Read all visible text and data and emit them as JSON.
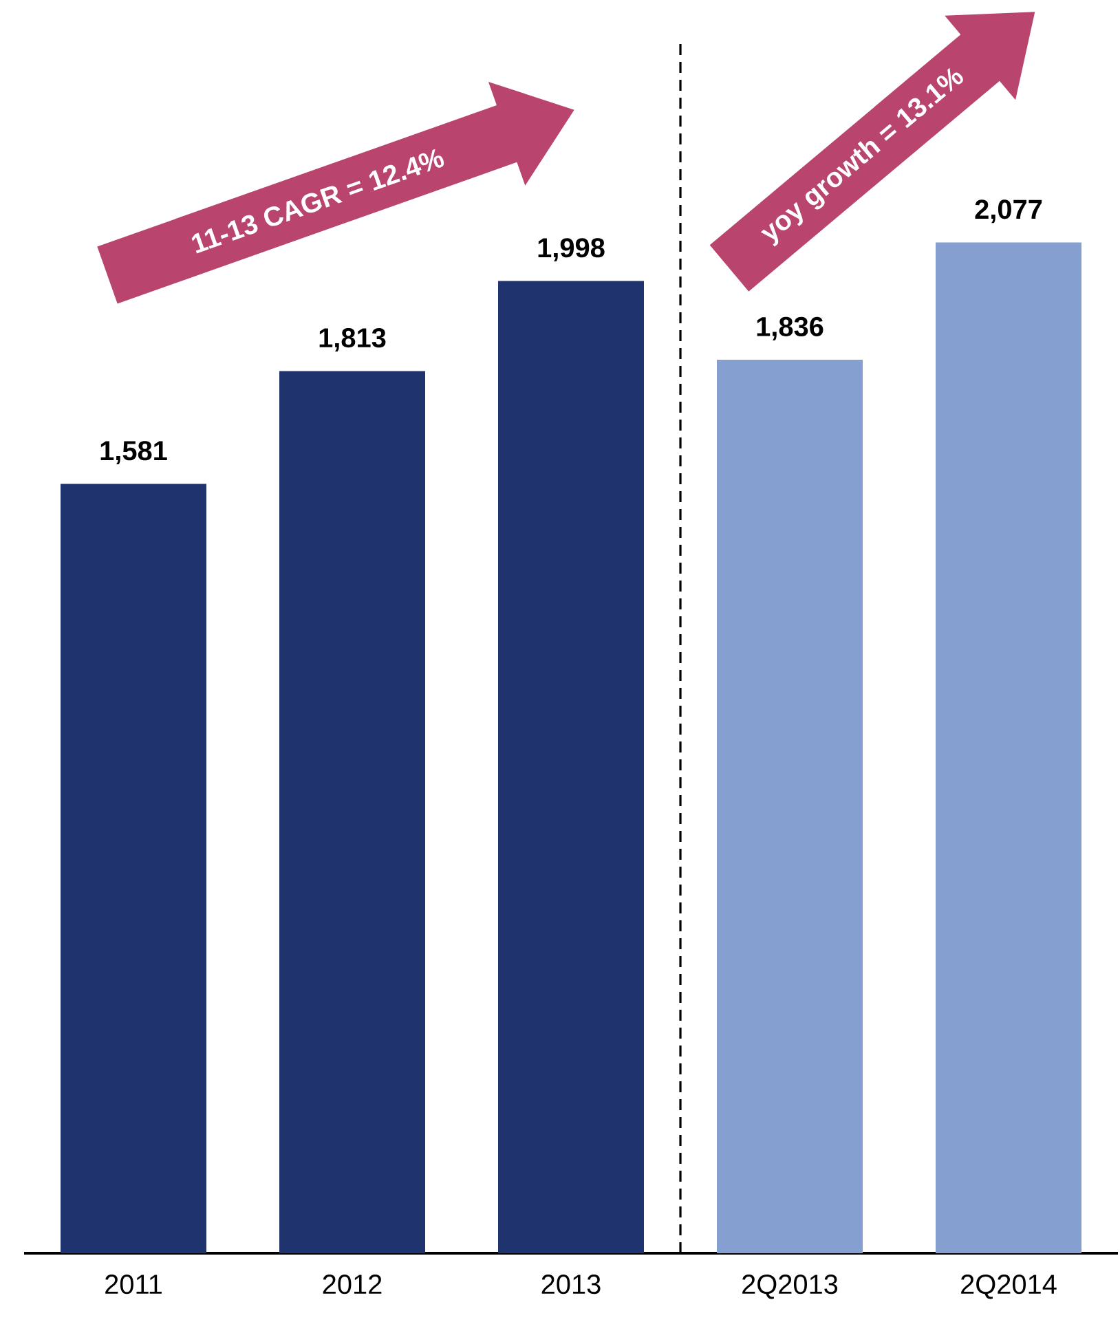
{
  "chart_data": {
    "type": "bar",
    "categories": [
      "2011",
      "2012",
      "2013",
      "2Q2013",
      "2Q2014"
    ],
    "values": [
      1581,
      1813,
      1998,
      1836,
      2077
    ],
    "value_labels": [
      "1,581",
      "1,813",
      "1,998",
      "1,836",
      "2,077"
    ],
    "colors": [
      "#1f336e",
      "#1f336e",
      "#1f336e",
      "#859fd0",
      "#859fd0"
    ],
    "annotations": [
      "11-13 CAGR = 12.4%",
      "yoy growth = 13.1%"
    ]
  }
}
